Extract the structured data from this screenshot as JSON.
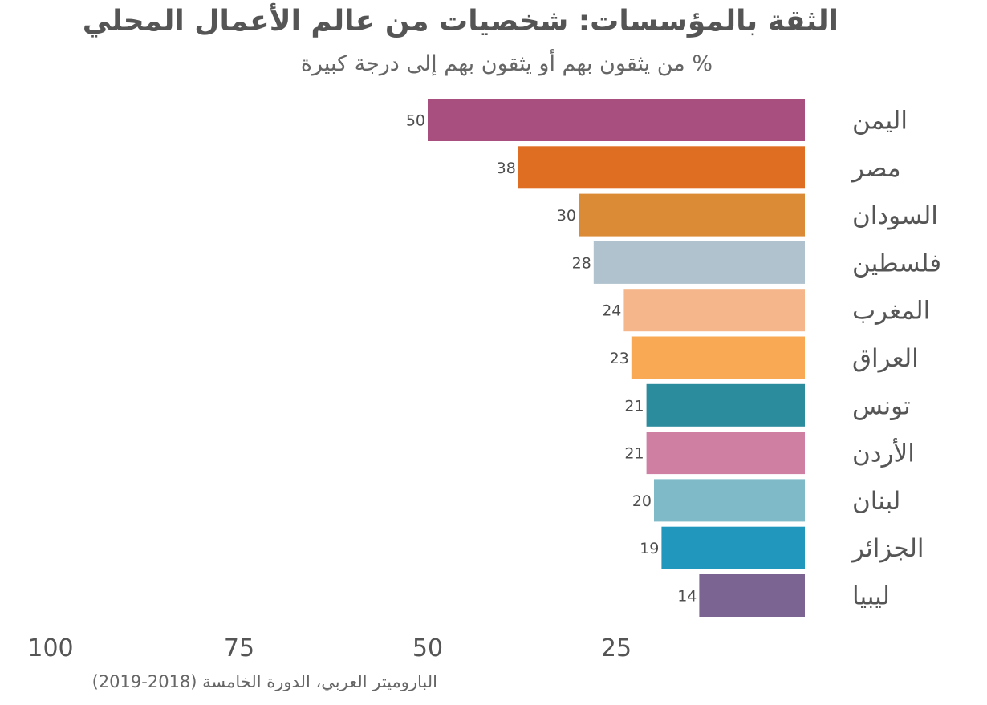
{
  "title": "الثقة بالمؤسسات: شخصيات من عالم الأعمال المحلي",
  "subtitle": "% من يثقون بهم أو يثقون بهم  إلى درجة كبيرة",
  "source": "الباروميتر العربي، الدورة الخامسة (2018-2019)",
  "chart_data": {
    "type": "bar",
    "orientation": "horizontal",
    "direction": "right-to-left",
    "title": "الثقة بالمؤسسات: شخصيات من عالم الأعمال المحلي",
    "subtitle": "% من يثقون بهم أو يثقون بهم  إلى درجة كبيرة",
    "categories": [
      "اليمن",
      "مصر",
      "السودان",
      "فلسطين",
      "المغرب",
      "العراق",
      "تونس",
      "الأردن",
      "لبنان",
      "الجزائر",
      "ليبيا"
    ],
    "values": [
      50,
      38,
      30,
      28,
      24,
      23,
      21,
      21,
      20,
      19,
      14
    ],
    "colors": [
      "#a94f7f",
      "#e06e22",
      "#db8a35",
      "#b0c2cd",
      "#f5b68c",
      "#f9a954",
      "#2a8c9c",
      "#cf7fa2",
      "#7fbac8",
      "#2197bd",
      "#7b6491"
    ],
    "xlim": [
      0,
      100
    ],
    "ticks": [
      100,
      75,
      50,
      25
    ],
    "tick_labels": [
      "100",
      "75",
      "50",
      "25"
    ],
    "grid": false,
    "data_labels": true,
    "xlabel": "",
    "ylabel": ""
  }
}
